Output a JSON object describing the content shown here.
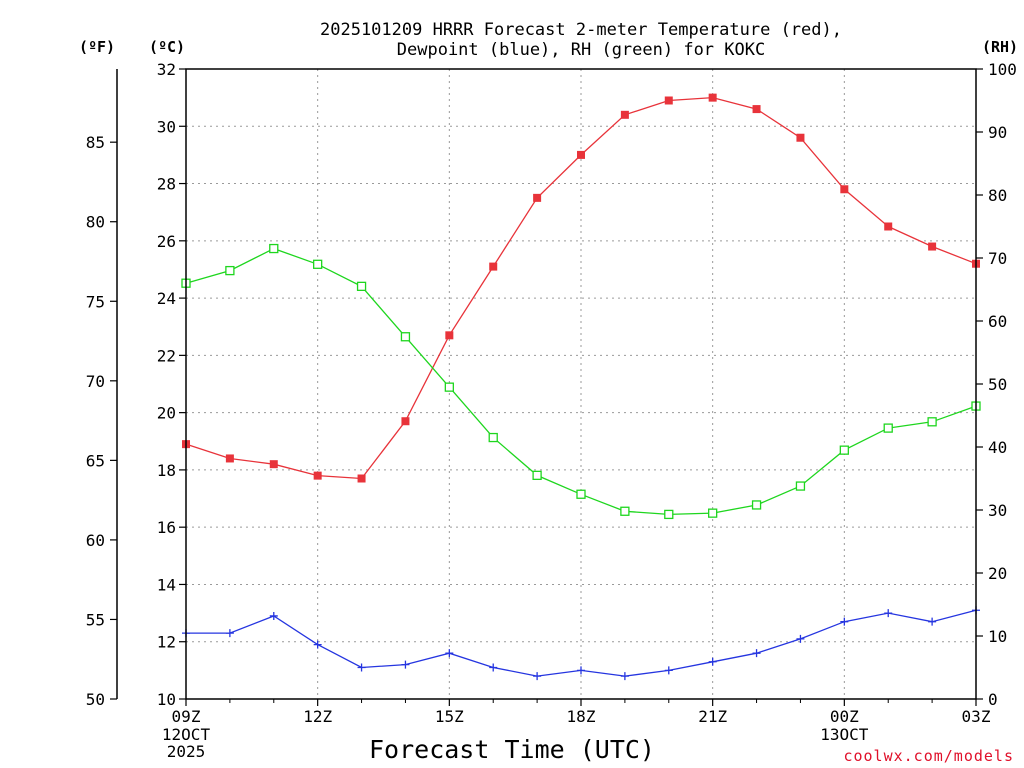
{
  "chart_data": {
    "type": "line",
    "title_line1": "2025101209 HRRR Forecast 2-meter Temperature (red),",
    "title_line2": "Dewpoint (blue), RH (green) for KOKC",
    "xlabel": "Forecast Time (UTC)",
    "credit": "coolwx.com/models",
    "unit_labels": {
      "fahrenheit": "(ºF)",
      "celsius": "(ºC)",
      "rh": "(RH)"
    },
    "x_hours": [
      0,
      1,
      2,
      3,
      4,
      5,
      6,
      7,
      8,
      9,
      10,
      11,
      12,
      13,
      14,
      15,
      16,
      17,
      18
    ],
    "x_ticks": [
      {
        "hour": 0,
        "label": "09Z",
        "date": "12OCT",
        "year": "2025"
      },
      {
        "hour": 3,
        "label": "12Z",
        "date": "",
        "year": ""
      },
      {
        "hour": 6,
        "label": "15Z",
        "date": "",
        "year": ""
      },
      {
        "hour": 9,
        "label": "18Z",
        "date": "",
        "year": ""
      },
      {
        "hour": 12,
        "label": "21Z",
        "date": "",
        "year": ""
      },
      {
        "hour": 15,
        "label": "00Z",
        "date": "13OCT",
        "year": ""
      },
      {
        "hour": 18,
        "label": "03Z",
        "date": "",
        "year": ""
      }
    ],
    "celsius_axis": {
      "min": 10,
      "max": 32,
      "ticks": [
        "10",
        "12",
        "14",
        "16",
        "18",
        "20",
        "22",
        "24",
        "26",
        "28",
        "30",
        "32"
      ]
    },
    "fahrenheit_axis": {
      "ticks": [
        "50",
        "55",
        "60",
        "65",
        "70",
        "75",
        "80",
        "85"
      ]
    },
    "rh_axis": {
      "min": 0,
      "max": 100,
      "ticks": [
        "0",
        "10",
        "20",
        "30",
        "40",
        "50",
        "60",
        "70",
        "80",
        "90",
        "100"
      ]
    },
    "series": [
      {
        "name": "Temperature",
        "units": "C",
        "color": "#e8333a",
        "marker": "filled-square",
        "values": [
          18.9,
          18.4,
          18.2,
          17.8,
          17.7,
          19.7,
          22.7,
          25.1,
          27.5,
          29.0,
          30.4,
          30.9,
          31.0,
          30.6,
          29.6,
          27.8,
          26.5,
          25.8,
          25.2
        ]
      },
      {
        "name": "Dewpoint",
        "units": "C",
        "color": "#2535e0",
        "marker": "plus",
        "values": [
          12.3,
          12.3,
          12.9,
          11.9,
          11.1,
          11.2,
          11.6,
          11.1,
          10.8,
          11.0,
          10.8,
          11.0,
          11.3,
          11.6,
          12.1,
          12.7,
          13.0,
          12.7,
          13.1
        ]
      },
      {
        "name": "RH",
        "units": "%",
        "color": "#1ed61e",
        "marker": "open-square",
        "values": [
          66.0,
          68.0,
          71.5,
          69.0,
          65.5,
          57.5,
          49.5,
          41.5,
          35.5,
          32.5,
          29.8,
          29.3,
          29.5,
          30.8,
          33.8,
          39.5,
          43.0,
          44.0,
          46.5
        ]
      }
    ]
  }
}
